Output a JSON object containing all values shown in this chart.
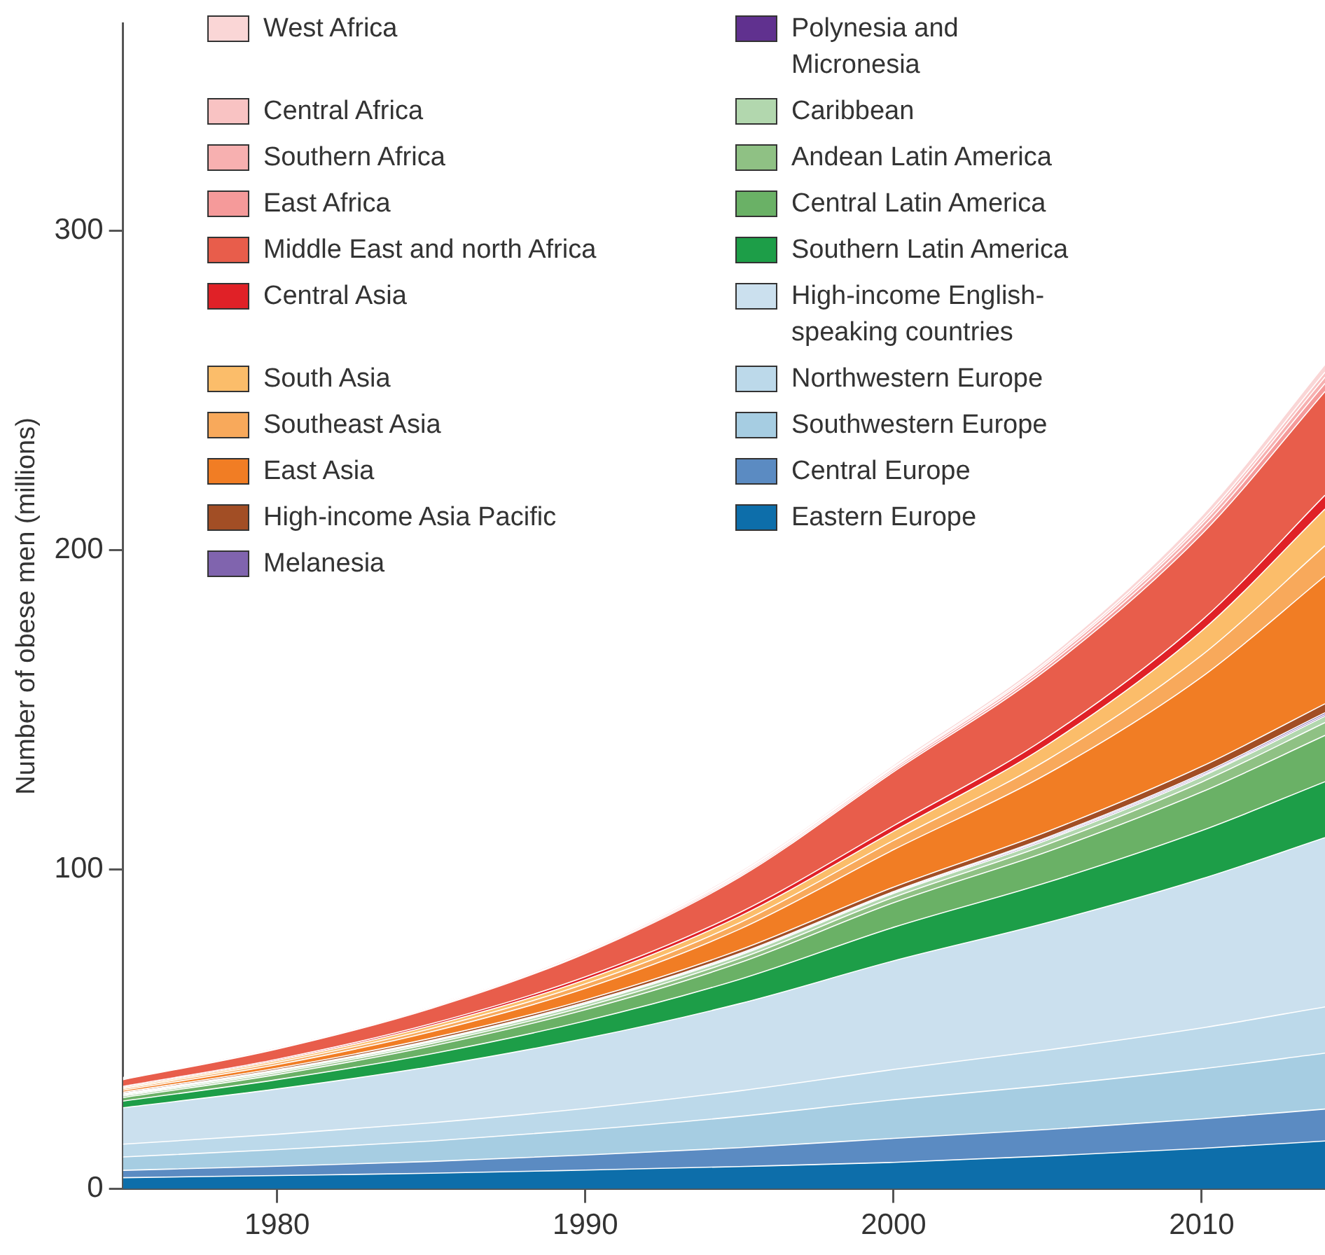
{
  "chart_data": {
    "type": "area",
    "stacked": true,
    "ylabel": "Number of obese men (millions)",
    "legend": "top left",
    "grid": false,
    "marker": "none",
    "x": [
      1975,
      1980,
      1985,
      1990,
      1995,
      2000,
      2005,
      2010,
      2014
    ],
    "xlim": [
      1975,
      2014
    ],
    "xticks": [
      1980,
      1990,
      2000,
      2010
    ],
    "ylim": [
      0,
      365
    ],
    "yticks": [
      0,
      100,
      200,
      300
    ],
    "series": [
      {
        "name": "Eastern Europe",
        "color": "#0d6eaa",
        "values": [
          3.5,
          4.2,
          4.9,
          5.9,
          7.0,
          8.3,
          10.3,
          12.7,
          15
        ]
      },
      {
        "name": "Central Europe",
        "color": "#5b8bc2",
        "values": [
          2.3,
          2.9,
          3.7,
          4.7,
          5.9,
          7.5,
          8.3,
          9.2,
          10
        ]
      },
      {
        "name": "Southwestern Europe",
        "color": "#a6cde2",
        "values": [
          4.2,
          5.2,
          6.4,
          7.9,
          9.8,
          12.1,
          13.8,
          15.7,
          17.5
        ]
      },
      {
        "name": "Northwestern Europe",
        "color": "#bcd9ea",
        "values": [
          4,
          4.8,
          5.7,
          6.7,
          8.0,
          9.5,
          11.1,
          12.8,
          14.5
        ]
      },
      {
        "name": "High-income English-speaking countries",
        "color": "#cbe0ee",
        "values": [
          11.4,
          14.2,
          17.6,
          21.9,
          27.3,
          34,
          39.9,
          46.7,
          53
        ]
      },
      {
        "name": "Southern Latin America",
        "color": "#1d9e48",
        "values": [
          2.1,
          2.9,
          4.0,
          5.5,
          7.6,
          10.5,
          12.6,
          15.1,
          17.5
        ]
      },
      {
        "name": "Central Latin America",
        "color": "#6ab166",
        "values": [
          1.1,
          1.6,
          2.4,
          3.5,
          5.2,
          7.7,
          9.6,
          12.1,
          14.5
        ]
      },
      {
        "name": "Andean Latin America",
        "color": "#8fc184",
        "values": [
          0.5,
          0.6,
          0.8,
          1.0,
          1.3,
          1.7,
          2.3,
          3.1,
          4
        ]
      },
      {
        "name": "Caribbean",
        "color": "#b2d7ae",
        "values": [
          0.4,
          0.5,
          0.6,
          0.8,
          1.0,
          1.2,
          1.4,
          1.7,
          2
        ]
      },
      {
        "name": "Polynesia and Micronesia",
        "color": "#60318f",
        "values": [
          0.2,
          0.2,
          0.2,
          0.2,
          0.3,
          0.3,
          0.4,
          0.4,
          0.5
        ]
      },
      {
        "name": "Melanesia",
        "color": "#8064ae",
        "values": [
          0.2,
          0.2,
          0.2,
          0.3,
          0.3,
          0.3,
          0.4,
          0.5,
          0.6
        ]
      },
      {
        "name": "High-income Asia Pacific",
        "color": "#a24e25",
        "values": [
          0.4,
          0.5,
          0.7,
          0.8,
          1.1,
          1.4,
          1.8,
          2.3,
          2.8
        ]
      },
      {
        "name": "East Asia",
        "color": "#f17d24",
        "values": [
          0.6,
          1.1,
          2.0,
          3.6,
          6.5,
          11.7,
          18.1,
          28,
          40
        ]
      },
      {
        "name": "Southeast Asia",
        "color": "#f8a95b",
        "values": [
          0.5,
          0.7,
          1.0,
          1.4,
          2.0,
          2.9,
          4.4,
          6.8,
          9.5
        ]
      },
      {
        "name": "South Asia",
        "color": "#fbbd6a",
        "values": [
          0.4,
          0.6,
          0.9,
          1.3,
          2.0,
          2.9,
          4.7,
          7.6,
          11.5
        ]
      },
      {
        "name": "Central Asia",
        "color": "#e02127",
        "values": [
          0.3,
          0.4,
          0.6,
          0.9,
          1.2,
          1.7,
          2.4,
          3.3,
          4.3
        ]
      },
      {
        "name": "Middle East and north Africa",
        "color": "#e85d4b",
        "values": [
          2.1,
          3.2,
          4.8,
          7.3,
          11.1,
          16.9,
          21.3,
          27,
          32.5
        ]
      },
      {
        "name": "East Africa",
        "color": "#f59a9a",
        "values": [
          0.2,
          0.2,
          0.3,
          0.3,
          0.5,
          0.6,
          1.0,
          1.7,
          2.5
        ]
      },
      {
        "name": "Southern Africa",
        "color": "#f7b0b0",
        "values": [
          0.2,
          0.3,
          0.3,
          0.4,
          0.5,
          0.6,
          0.9,
          1.4,
          2
        ]
      },
      {
        "name": "Central Africa",
        "color": "#f9c3c3",
        "values": [
          0.1,
          0.1,
          0.2,
          0.2,
          0.3,
          0.4,
          0.6,
          1.0,
          1.5
        ]
      },
      {
        "name": "West Africa",
        "color": "#fad6d6",
        "values": [
          0.2,
          0.2,
          0.3,
          0.3,
          0.5,
          0.6,
          1.0,
          1.7,
          2.5
        ]
      }
    ]
  }
}
